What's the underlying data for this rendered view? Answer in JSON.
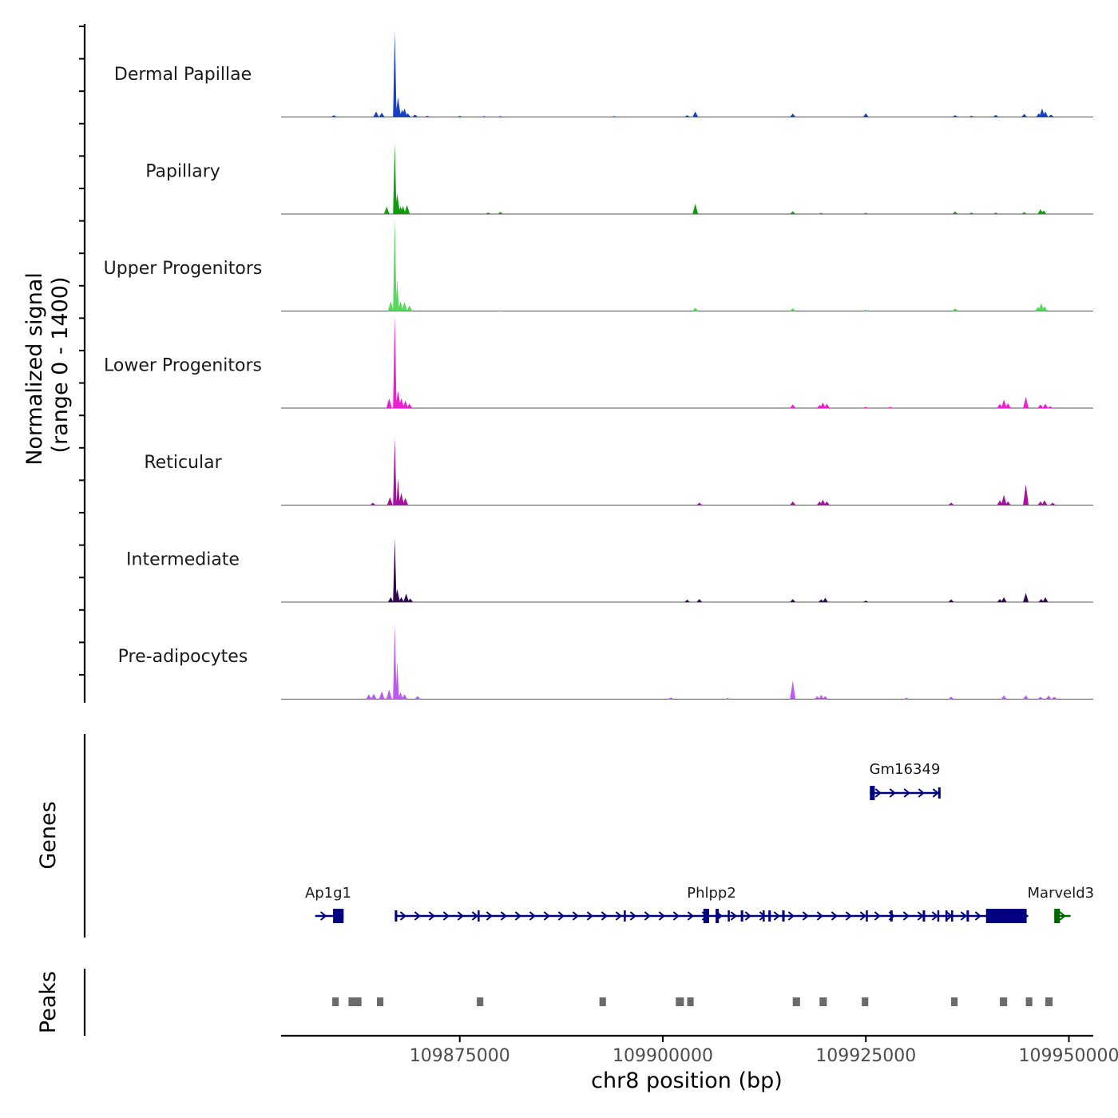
{
  "chart_data": {
    "type": "area",
    "title": "",
    "chromosome": "chr8",
    "xlabel": "chr8 position (bp)",
    "ylabel_line1": "Normalized signal",
    "ylabel_line2": "(range 0 - 1400)",
    "xlim": [
      109853000,
      109953000
    ],
    "ylim": [
      0,
      1400
    ],
    "x_ticks": [
      109875000,
      109900000,
      109925000,
      109950000
    ],
    "x_tick_labels": [
      "109875000",
      "109900000",
      "109925000",
      "109950000"
    ],
    "tracks": [
      {
        "name": "Dermal Papillae",
        "color": "#1540c8",
        "peaks": [
          [
            109859500,
            30
          ],
          [
            109864700,
            90
          ],
          [
            109865400,
            70
          ],
          [
            109867000,
            1400
          ],
          [
            109867400,
            320
          ],
          [
            109867900,
            120
          ],
          [
            109868200,
            140
          ],
          [
            109868600,
            60
          ],
          [
            109869500,
            40
          ],
          [
            109871000,
            20
          ],
          [
            109875000,
            18
          ],
          [
            109878000,
            15
          ],
          [
            109880000,
            15
          ],
          [
            109894000,
            15
          ],
          [
            109903000,
            30
          ],
          [
            109904000,
            90
          ],
          [
            109916000,
            55
          ],
          [
            109925000,
            60
          ],
          [
            109936000,
            30
          ],
          [
            109938000,
            20
          ],
          [
            109941000,
            35
          ],
          [
            109944500,
            50
          ],
          [
            109946300,
            60
          ],
          [
            109946700,
            140
          ],
          [
            109947100,
            90
          ],
          [
            109947800,
            40
          ]
        ]
      },
      {
        "name": "Papillary",
        "color": "#119e0e",
        "peaks": [
          [
            109866000,
            120
          ],
          [
            109867000,
            1150
          ],
          [
            109867300,
            330
          ],
          [
            109867700,
            120
          ],
          [
            109868000,
            130
          ],
          [
            109868500,
            150
          ],
          [
            109878500,
            25
          ],
          [
            109880000,
            35
          ],
          [
            109904000,
            170
          ],
          [
            109916000,
            45
          ],
          [
            109919500,
            20
          ],
          [
            109925000,
            20
          ],
          [
            109936000,
            40
          ],
          [
            109938000,
            25
          ],
          [
            109941000,
            25
          ],
          [
            109944500,
            30
          ],
          [
            109946500,
            80
          ],
          [
            109946900,
            60
          ]
        ]
      },
      {
        "name": "Upper Progenitors",
        "color": "#56d85c",
        "peaks": [
          [
            109866500,
            160
          ],
          [
            109867000,
            1520
          ],
          [
            109867300,
            520
          ],
          [
            109867700,
            160
          ],
          [
            109868200,
            150
          ],
          [
            109868800,
            90
          ],
          [
            109880000,
            15
          ],
          [
            109904000,
            55
          ],
          [
            109916000,
            45
          ],
          [
            109925000,
            20
          ],
          [
            109936000,
            45
          ],
          [
            109946200,
            70
          ],
          [
            109946600,
            130
          ],
          [
            109947000,
            80
          ]
        ]
      },
      {
        "name": "Lower Progenitors",
        "color": "#ee1fd0",
        "peaks": [
          [
            109866300,
            160
          ],
          [
            109867000,
            1500
          ],
          [
            109867400,
            280
          ],
          [
            109867800,
            160
          ],
          [
            109868300,
            120
          ],
          [
            109868800,
            70
          ],
          [
            109916000,
            60
          ],
          [
            109919300,
            50
          ],
          [
            109919700,
            90
          ],
          [
            109920200,
            70
          ],
          [
            109925000,
            20
          ],
          [
            109928000,
            20
          ],
          [
            109941500,
            70
          ],
          [
            109942000,
            140
          ],
          [
            109942500,
            80
          ],
          [
            109944700,
            180
          ],
          [
            109946500,
            60
          ],
          [
            109947100,
            70
          ],
          [
            109947700,
            30
          ]
        ]
      },
      {
        "name": "Reticular",
        "color": "#a711a3",
        "peaks": [
          [
            109864300,
            40
          ],
          [
            109866400,
            130
          ],
          [
            109867000,
            1100
          ],
          [
            109867400,
            440
          ],
          [
            109867800,
            200
          ],
          [
            109868300,
            120
          ],
          [
            109904500,
            40
          ],
          [
            109916000,
            60
          ],
          [
            109919300,
            60
          ],
          [
            109919700,
            90
          ],
          [
            109920200,
            60
          ],
          [
            109935500,
            40
          ],
          [
            109941500,
            80
          ],
          [
            109942000,
            170
          ],
          [
            109942500,
            60
          ],
          [
            109944700,
            340
          ],
          [
            109946500,
            60
          ],
          [
            109947000,
            80
          ],
          [
            109948000,
            40
          ]
        ]
      },
      {
        "name": "Intermediate",
        "color": "#310a57",
        "peaks": [
          [
            109866500,
            80
          ],
          [
            109867000,
            1050
          ],
          [
            109867300,
            210
          ],
          [
            109867800,
            80
          ],
          [
            109868400,
            140
          ],
          [
            109868900,
            60
          ],
          [
            109903000,
            40
          ],
          [
            109904500,
            50
          ],
          [
            109916000,
            50
          ],
          [
            109919500,
            45
          ],
          [
            109920000,
            70
          ],
          [
            109925000,
            25
          ],
          [
            109935500,
            45
          ],
          [
            109941500,
            50
          ],
          [
            109942000,
            80
          ],
          [
            109944700,
            150
          ],
          [
            109946600,
            50
          ],
          [
            109947100,
            80
          ]
        ]
      },
      {
        "name": "Pre-adipocytes",
        "color": "#bc5bf0",
        "peaks": [
          [
            109863800,
            80
          ],
          [
            109864400,
            90
          ],
          [
            109865400,
            130
          ],
          [
            109866300,
            160
          ],
          [
            109867000,
            1220
          ],
          [
            109867300,
            620
          ],
          [
            109867700,
            110
          ],
          [
            109868200,
            80
          ],
          [
            109869800,
            50
          ],
          [
            109901000,
            30
          ],
          [
            109908000,
            20
          ],
          [
            109916000,
            300
          ],
          [
            109919000,
            50
          ],
          [
            109919500,
            70
          ],
          [
            109920000,
            50
          ],
          [
            109930000,
            25
          ],
          [
            109935500,
            40
          ],
          [
            109942000,
            60
          ],
          [
            109944700,
            60
          ],
          [
            109946500,
            40
          ],
          [
            109947500,
            60
          ],
          [
            109948200,
            40
          ]
        ]
      }
    ],
    "genes_label": "Genes",
    "genes": [
      {
        "name": "Gm16349",
        "start": 109925500,
        "end": 109934200,
        "strand": "+",
        "color": "#000080",
        "row": 0,
        "exons": [
          [
            109925500,
            109926100
          ],
          [
            109933900,
            109934200
          ]
        ],
        "label_pos": 109929800
      },
      {
        "name": "Ap1g1",
        "start": 109857200,
        "end": 109860700,
        "strand": "+",
        "color": "#000080",
        "row": 1,
        "exons": [
          [
            109859400,
            109860700
          ]
        ],
        "label_pos": 109858800
      },
      {
        "name": "Phlpp2",
        "start": 109867000,
        "end": 109945000,
        "strand": "+",
        "color": "#000080",
        "row": 1,
        "exons": [
          [
            109867000,
            109867300
          ],
          [
            109877200,
            109877400
          ],
          [
            109895200,
            109895400
          ],
          [
            109905000,
            109905700
          ],
          [
            109906500,
            109906900
          ],
          [
            109908000,
            109908200
          ],
          [
            109909600,
            109909900
          ],
          [
            109912300,
            109912500
          ],
          [
            109913000,
            109913300
          ],
          [
            109914700,
            109915000
          ],
          [
            109925000,
            109925200
          ],
          [
            109928000,
            109928300
          ],
          [
            109932000,
            109932300
          ],
          [
            109933800,
            109934000
          ],
          [
            109934800,
            109935000
          ],
          [
            109935500,
            109935700
          ],
          [
            109937400,
            109937700
          ],
          [
            109939800,
            109944800
          ]
        ],
        "label_pos": 109906000
      },
      {
        "name": "Marveld3",
        "start": 109948200,
        "end": 109950200,
        "strand": "+",
        "color": "#006400",
        "row": 1,
        "exons": [
          [
            109948200,
            109948900
          ]
        ],
        "label_pos": 109949000
      }
    ],
    "peaks_label": "Peaks",
    "peaks": [
      [
        109859300,
        109860100
      ],
      [
        109861300,
        109862900
      ],
      [
        109864800,
        109865600
      ],
      [
        109877100,
        109877900
      ],
      [
        109892200,
        109893000
      ],
      [
        109901600,
        109902600
      ],
      [
        109903000,
        109903800
      ],
      [
        109916000,
        109916900
      ],
      [
        109919300,
        109920200
      ],
      [
        109924500,
        109925300
      ],
      [
        109935500,
        109936300
      ],
      [
        109941500,
        109942400
      ],
      [
        109944700,
        109945500
      ],
      [
        109947100,
        109948000
      ]
    ]
  }
}
